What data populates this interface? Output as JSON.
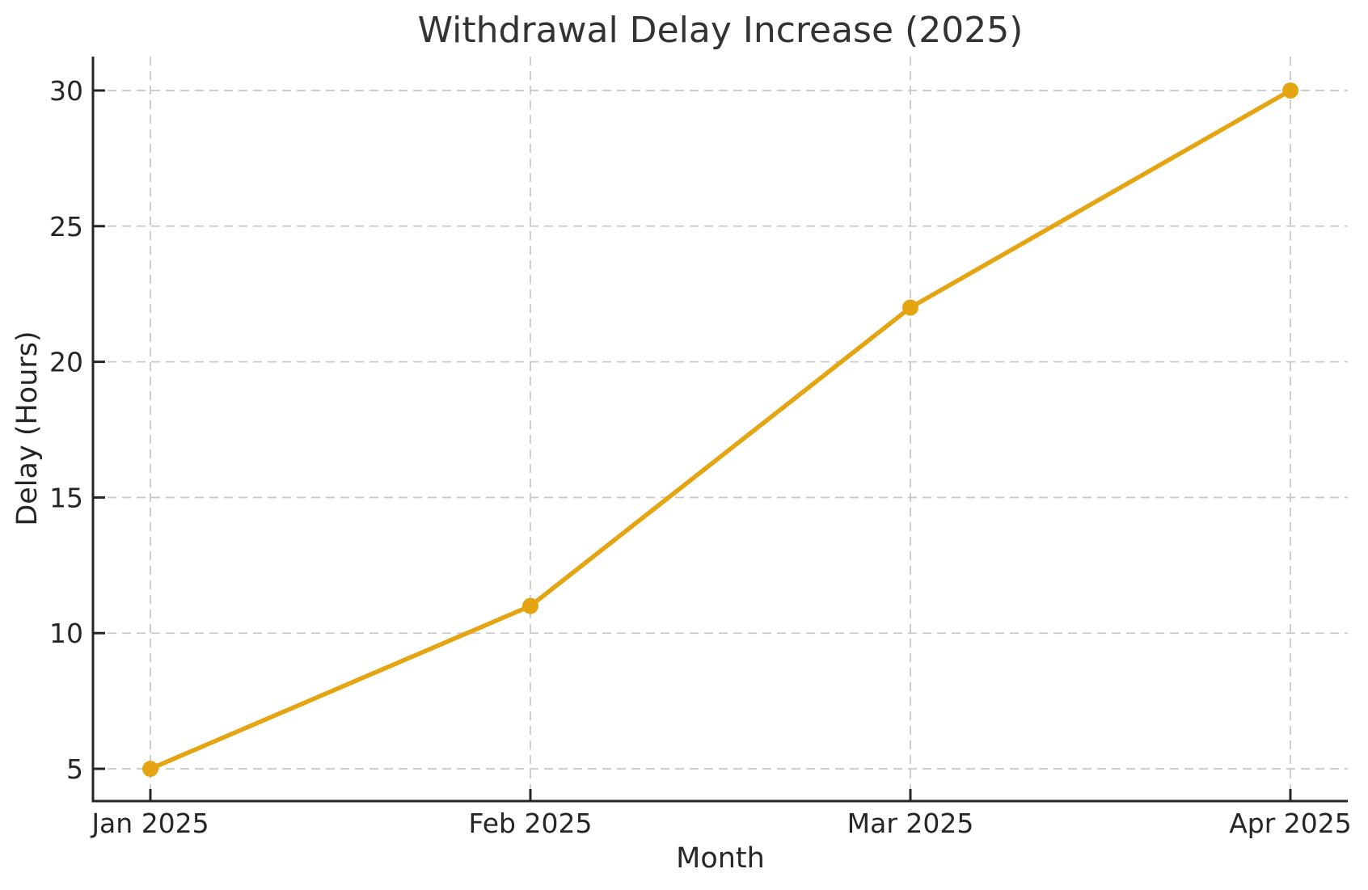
{
  "chart_data": {
    "type": "line",
    "title": "Withdrawal Delay Increase (2025)",
    "xlabel": "Month",
    "ylabel": "Delay (Hours)",
    "categories": [
      "Jan 2025",
      "Feb 2025",
      "Mar 2025",
      "Apr 2025"
    ],
    "series": [
      {
        "values": [
          5,
          11,
          22,
          30
        ],
        "marker": "circle"
      }
    ],
    "y_ticks": [
      5,
      10,
      15,
      20,
      25,
      30
    ],
    "ylim": [
      3.81,
      31.25
    ],
    "grid": true,
    "grid_style": "dashed",
    "legend": false,
    "colors": {
      "line": "#E5A512",
      "grid": "#c9c9c9",
      "axis": "#262626",
      "tick_text": "#262626",
      "title_text": "#333333"
    }
  }
}
